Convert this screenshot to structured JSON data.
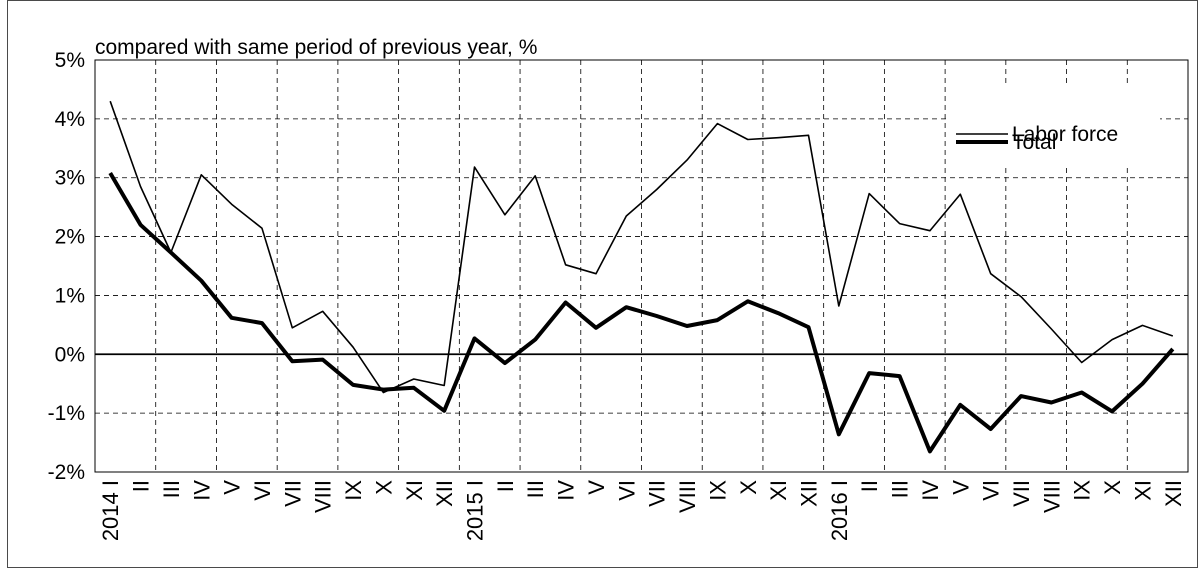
{
  "chart_data": {
    "type": "line",
    "title": "compared with same period of previous year, %",
    "xlabel": "",
    "ylabel": "",
    "ylim": [
      -2,
      5
    ],
    "y_ticks": [
      "5%",
      "4%",
      "3%",
      "2%",
      "1%",
      "0%",
      "-1%",
      "-2%"
    ],
    "y_tick_values": [
      5,
      4,
      3,
      2,
      1,
      0,
      -1,
      -2
    ],
    "categories": [
      "2014 I",
      "II",
      "III",
      "IV",
      "V",
      "VI",
      "VII",
      "VIII",
      "IX",
      "X",
      "XI",
      "XII",
      "2015 I",
      "II",
      "III",
      "IV",
      "V",
      "VI",
      "VII",
      "VIII",
      "IX",
      "X",
      "XI",
      "XII",
      "2016 I",
      "II",
      "III",
      "IV",
      "V",
      "VI",
      "VII",
      "VIII",
      "IX",
      "X",
      "XI",
      "XII"
    ],
    "grid": true,
    "legend_position": "top-right",
    "series": [
      {
        "name": "Labor force",
        "style": "thin",
        "color": "#000000",
        "values": [
          4.3,
          2.85,
          1.73,
          3.05,
          2.55,
          2.14,
          0.45,
          0.73,
          0.12,
          -0.65,
          -0.42,
          -0.53,
          3.18,
          2.37,
          3.03,
          1.52,
          1.37,
          2.35,
          2.8,
          3.3,
          3.92,
          3.65,
          3.68,
          3.72,
          0.82,
          2.73,
          2.22,
          2.1,
          2.72,
          1.37,
          0.98,
          0.43,
          -0.14,
          0.25,
          0.49,
          0.31
        ]
      },
      {
        "name": "Total",
        "style": "thick",
        "color": "#000000",
        "values": [
          3.08,
          2.2,
          1.73,
          1.25,
          0.62,
          0.53,
          -0.12,
          -0.09,
          -0.52,
          -0.6,
          -0.57,
          -0.96,
          0.27,
          -0.15,
          0.25,
          0.88,
          0.45,
          0.8,
          0.65,
          0.48,
          0.58,
          0.9,
          0.7,
          0.46,
          -1.36,
          -0.32,
          -0.37,
          -1.65,
          -0.86,
          -1.27,
          -0.71,
          -0.82,
          -0.65,
          -0.97,
          -0.5,
          0.09
        ]
      }
    ]
  }
}
